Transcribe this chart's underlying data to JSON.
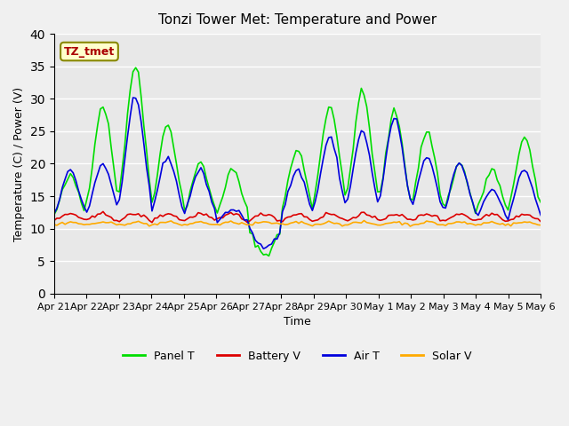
{
  "title": "Tonzi Tower Met: Temperature and Power",
  "xlabel": "Time",
  "ylabel": "Temperature (C) / Power (V)",
  "ylim": [
    0,
    40
  ],
  "yticks": [
    0,
    5,
    10,
    15,
    20,
    25,
    30,
    35,
    40
  ],
  "xtick_labels": [
    "Apr 21",
    "Apr 22",
    "Apr 23",
    "Apr 24",
    "Apr 25",
    "Apr 26",
    "Apr 27",
    "Apr 28",
    "Apr 29",
    "Apr 30",
    "May 1",
    "May 2",
    "May 3",
    "May 4",
    "May 5",
    "May 6"
  ],
  "annotation_text": "TZ_tmet",
  "panel_color": "#00dd00",
  "battery_color": "#dd0000",
  "air_color": "#0000dd",
  "solar_color": "#ffaa00",
  "bg_color": "#e8e8e8",
  "legend_labels": [
    "Panel T",
    "Battery V",
    "Air T",
    "Solar V"
  ]
}
